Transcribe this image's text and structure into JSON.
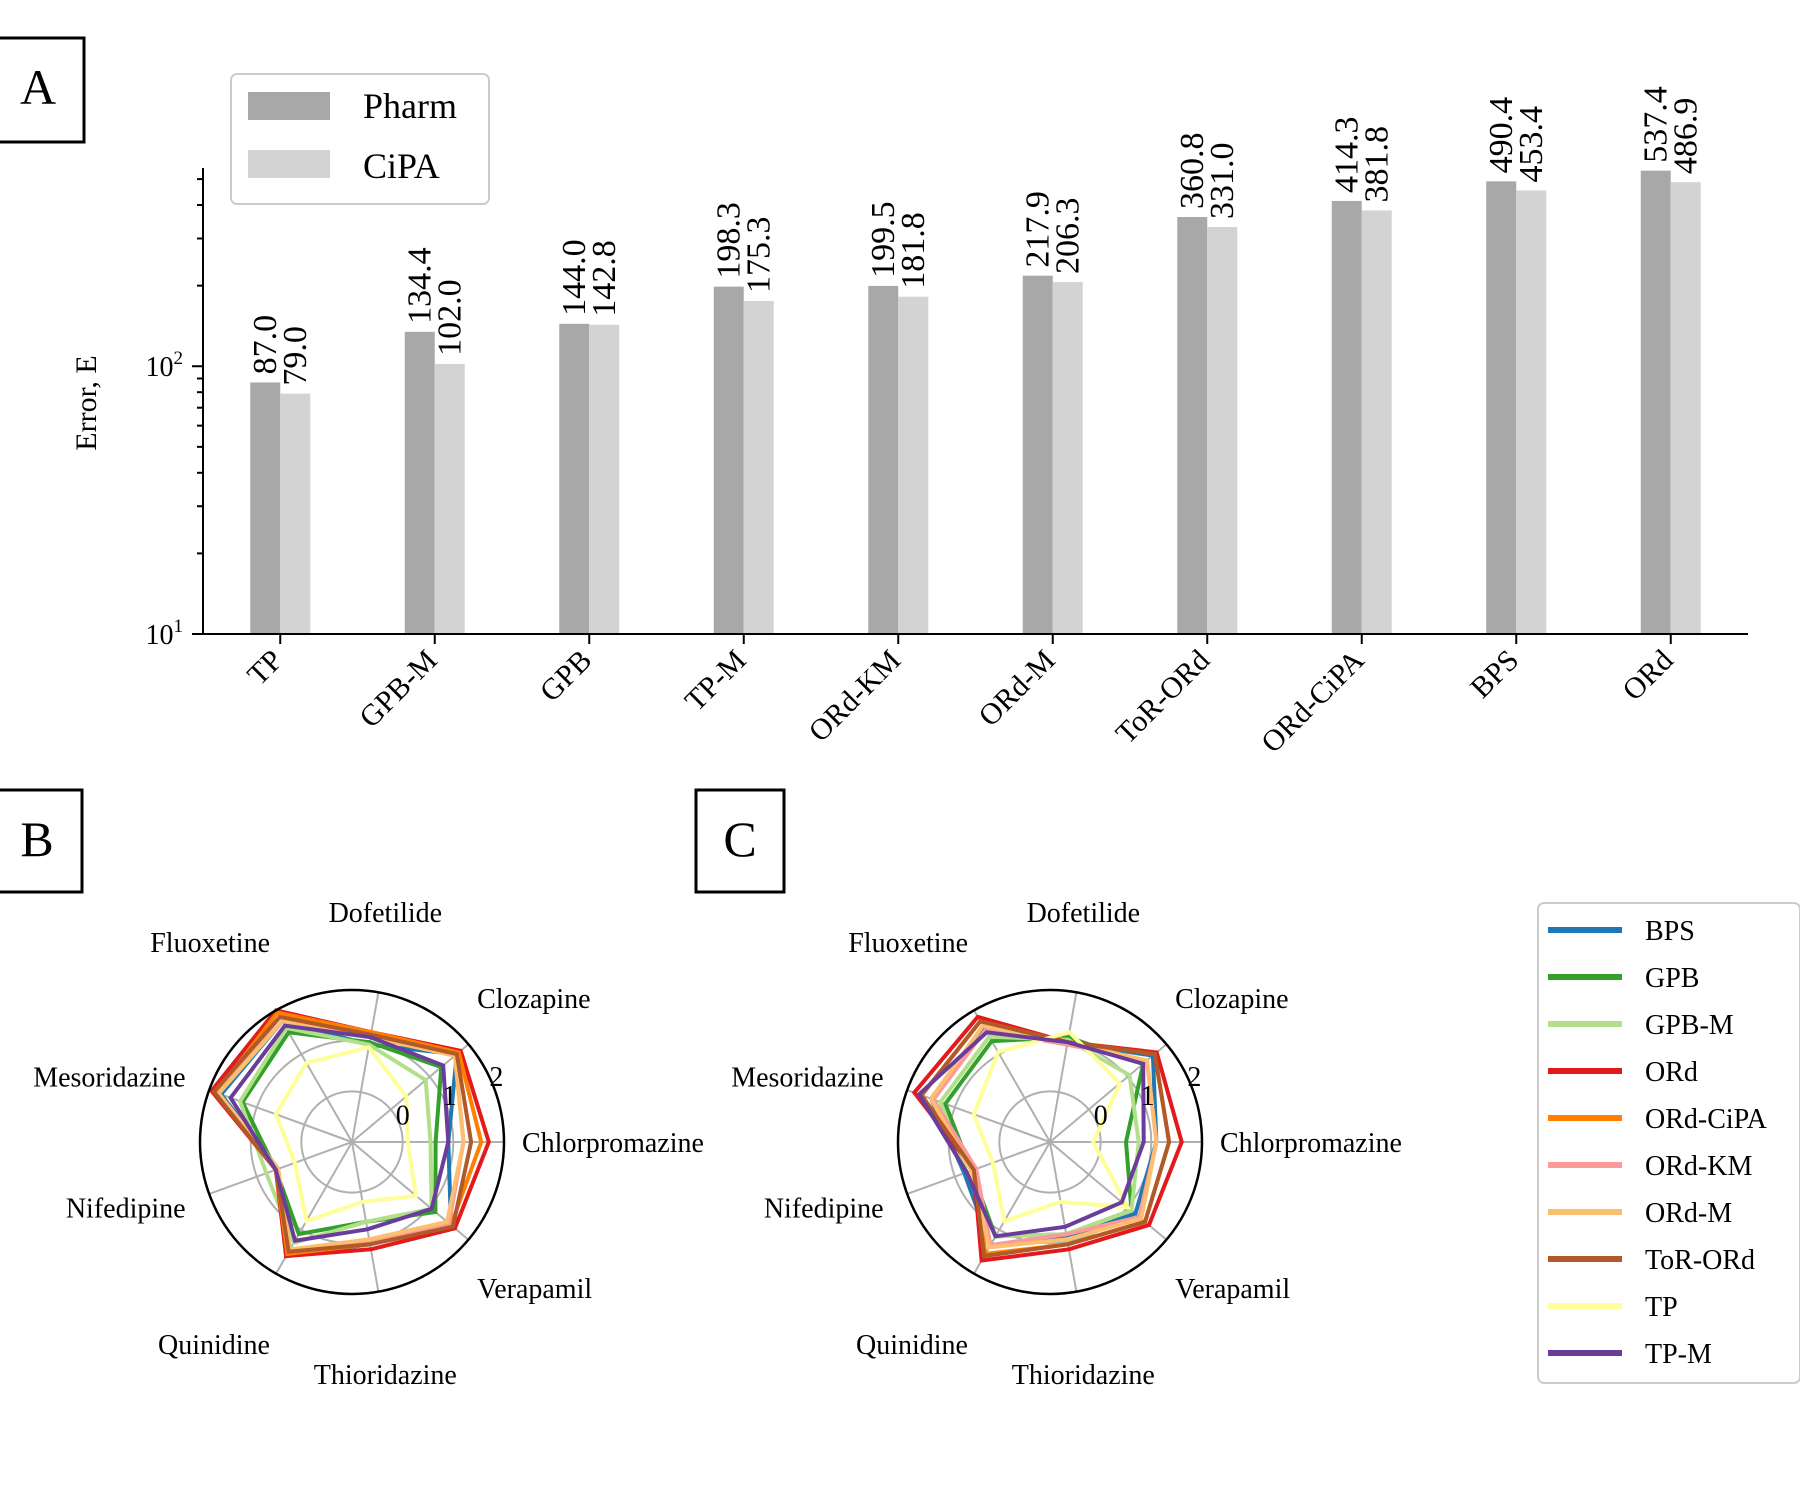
{
  "colors": {
    "pharm": "#a8a8a8",
    "cipa": "#d3d3d3",
    "legend_border": "#cccccc",
    "radar_grid": "#b0b0b0"
  },
  "panels": {
    "a": "A",
    "b": "B",
    "c": "C"
  },
  "chart_data": [
    {
      "type": "bar",
      "panel": "A",
      "scale": "log",
      "categories": [
        "TP",
        "GPB-M",
        "GPB",
        "TP-M",
        "ORd-KM",
        "ORd-M",
        "ToR-ORd",
        "ORd-CiPA",
        "BPS",
        "ORd"
      ],
      "series": [
        {
          "name": "Pharm",
          "values": [
            87.0,
            134.4,
            144.0,
            198.3,
            199.5,
            217.9,
            360.8,
            414.3,
            490.4,
            537.4
          ],
          "labels": [
            "87.0",
            "134.4",
            "144.0",
            "198.3",
            "199.5",
            "217.9",
            "360.8",
            "414.3",
            "490.4",
            "537.4"
          ]
        },
        {
          "name": "CiPA",
          "values": [
            79.0,
            102.0,
            142.8,
            175.3,
            181.8,
            206.3,
            331.0,
            381.8,
            453.4,
            486.9
          ],
          "labels": [
            "79.0",
            "102.0",
            "142.8",
            "175.3",
            "181.8",
            "206.3",
            "331.0",
            "381.8",
            "453.4",
            "486.9"
          ]
        }
      ],
      "ylabel": "Error, E",
      "ylim": [
        10,
        550
      ],
      "yticks": [
        {
          "value": 10,
          "base": "10",
          "exp": "1"
        },
        {
          "value": 100,
          "base": "10",
          "exp": "2"
        }
      ],
      "legend_position": "top-left"
    },
    {
      "type": "radar",
      "panel": "B",
      "axes": [
        "Chlorpromazine",
        "Clozapine",
        "Dofetilide",
        "Fluoxetine",
        "Mesoridazine",
        "Nifedipine",
        "Quinidine",
        "Thioridazine",
        "Verapamil"
      ],
      "rticks": [
        {
          "value": 0,
          "label": "0"
        },
        {
          "value": 1,
          "label": "1"
        },
        {
          "value": 2,
          "label": "2"
        }
      ],
      "rlim": [
        -1,
        2
      ],
      "series": [
        {
          "name": "BPS",
          "values": [
            0.9,
            1.7,
            0.95,
            1.75,
            1.75,
            0.55,
            1.6,
            1.05,
            1.55
          ]
        },
        {
          "name": "GPB",
          "values": [
            0.65,
            1.3,
            1.0,
            1.5,
            1.3,
            0.6,
            1.1,
            0.6,
            1.15
          ]
        },
        {
          "name": "GPB-M",
          "values": [
            0.55,
            0.9,
            0.95,
            1.6,
            1.35,
            0.8,
            1.3,
            0.6,
            1.05
          ]
        },
        {
          "name": "ORd",
          "values": [
            1.7,
            1.8,
            1.2,
            2.0,
            1.95,
            0.6,
            1.6,
            1.15,
            1.65
          ]
        },
        {
          "name": "ORd-CiPA",
          "values": [
            1.55,
            1.75,
            1.2,
            1.95,
            1.85,
            0.6,
            1.55,
            1.05,
            1.55
          ]
        },
        {
          "name": "ORd-KM",
          "values": [
            1.2,
            1.65,
            1.1,
            1.85,
            1.8,
            0.55,
            1.5,
            1.0,
            1.5
          ]
        },
        {
          "name": "ORd-M",
          "values": [
            1.2,
            1.65,
            1.1,
            1.75,
            1.8,
            0.55,
            1.45,
            0.95,
            1.45
          ]
        },
        {
          "name": "ToR-ORd",
          "values": [
            1.35,
            1.7,
            1.15,
            1.85,
            1.9,
            0.6,
            1.5,
            1.05,
            1.6
          ]
        },
        {
          "name": "TP",
          "values": [
            0.1,
            0.4,
            0.9,
            0.8,
            0.6,
            0.2,
            0.8,
            0.2,
            0.65
          ]
        },
        {
          "name": "TP-M",
          "values": [
            0.9,
            1.35,
            1.1,
            1.65,
            1.55,
            0.6,
            1.25,
            0.75,
            1.05
          ]
        }
      ]
    },
    {
      "type": "radar",
      "panel": "C",
      "axes": [
        "Chlorpromazine",
        "Clozapine",
        "Dofetilide",
        "Fluoxetine",
        "Mesoridazine",
        "Nifedipine",
        "Quinidine",
        "Thioridazine",
        "Verapamil"
      ],
      "rticks": [
        {
          "value": 0,
          "label": "0"
        },
        {
          "value": 1,
          "label": "1"
        },
        {
          "value": 2,
          "label": "2"
        }
      ],
      "rlim": [
        -1,
        2
      ],
      "series": [
        {
          "name": "BPS",
          "values": [
            1.1,
            1.65,
            1.0,
            1.6,
            1.5,
            0.8,
            1.35,
            0.9,
            1.2
          ]
        },
        {
          "name": "GPB",
          "values": [
            0.5,
            1.4,
            1.1,
            1.3,
            1.2,
            0.65,
            1.15,
            0.85,
            1.1
          ]
        },
        {
          "name": "GPB-M",
          "values": [
            0.75,
            1.05,
            1.05,
            1.4,
            1.3,
            0.75,
            1.15,
            0.85,
            1.1
          ]
        },
        {
          "name": "ORd",
          "values": [
            1.6,
            1.75,
            1.0,
            1.85,
            1.85,
            0.6,
            1.7,
            1.15,
            1.55
          ]
        },
        {
          "name": "ORd-CiPA",
          "values": [
            1.35,
            1.7,
            1.0,
            1.75,
            1.7,
            0.6,
            1.55,
            1.05,
            1.45
          ]
        },
        {
          "name": "ORd-KM",
          "values": [
            1.1,
            1.5,
            0.95,
            1.55,
            1.45,
            0.55,
            1.35,
            0.85,
            1.3
          ]
        },
        {
          "name": "ORd-M",
          "values": [
            1.1,
            1.5,
            1.0,
            1.65,
            1.5,
            0.65,
            1.4,
            0.95,
            1.35
          ]
        },
        {
          "name": "ToR-ORd",
          "values": [
            1.35,
            1.7,
            1.0,
            1.75,
            1.7,
            0.6,
            1.6,
            1.05,
            1.45
          ]
        },
        {
          "name": "TP",
          "values": [
            -0.15,
            0.8,
            1.2,
            1.05,
            0.6,
            0.2,
            0.8,
            0.2,
            1.0
          ]
        },
        {
          "name": "TP-M",
          "values": [
            0.85,
            1.4,
            1.0,
            1.5,
            1.75,
            0.75,
            1.15,
            0.7,
            0.85
          ]
        }
      ]
    }
  ],
  "legend_c": [
    {
      "name": "BPS",
      "color": "#1f78b4"
    },
    {
      "name": "GPB",
      "color": "#33a02c"
    },
    {
      "name": "GPB-M",
      "color": "#b2df8a"
    },
    {
      "name": "ORd",
      "color": "#e31a1c"
    },
    {
      "name": "ORd-CiPA",
      "color": "#ff7f00"
    },
    {
      "name": "ORd-KM",
      "color": "#fb9a99"
    },
    {
      "name": "ORd-M",
      "color": "#fdbf6f"
    },
    {
      "name": "ToR-ORd",
      "color": "#b15928"
    },
    {
      "name": "TP",
      "color": "#ffff99"
    },
    {
      "name": "TP-M",
      "color": "#6a3d9a"
    }
  ]
}
